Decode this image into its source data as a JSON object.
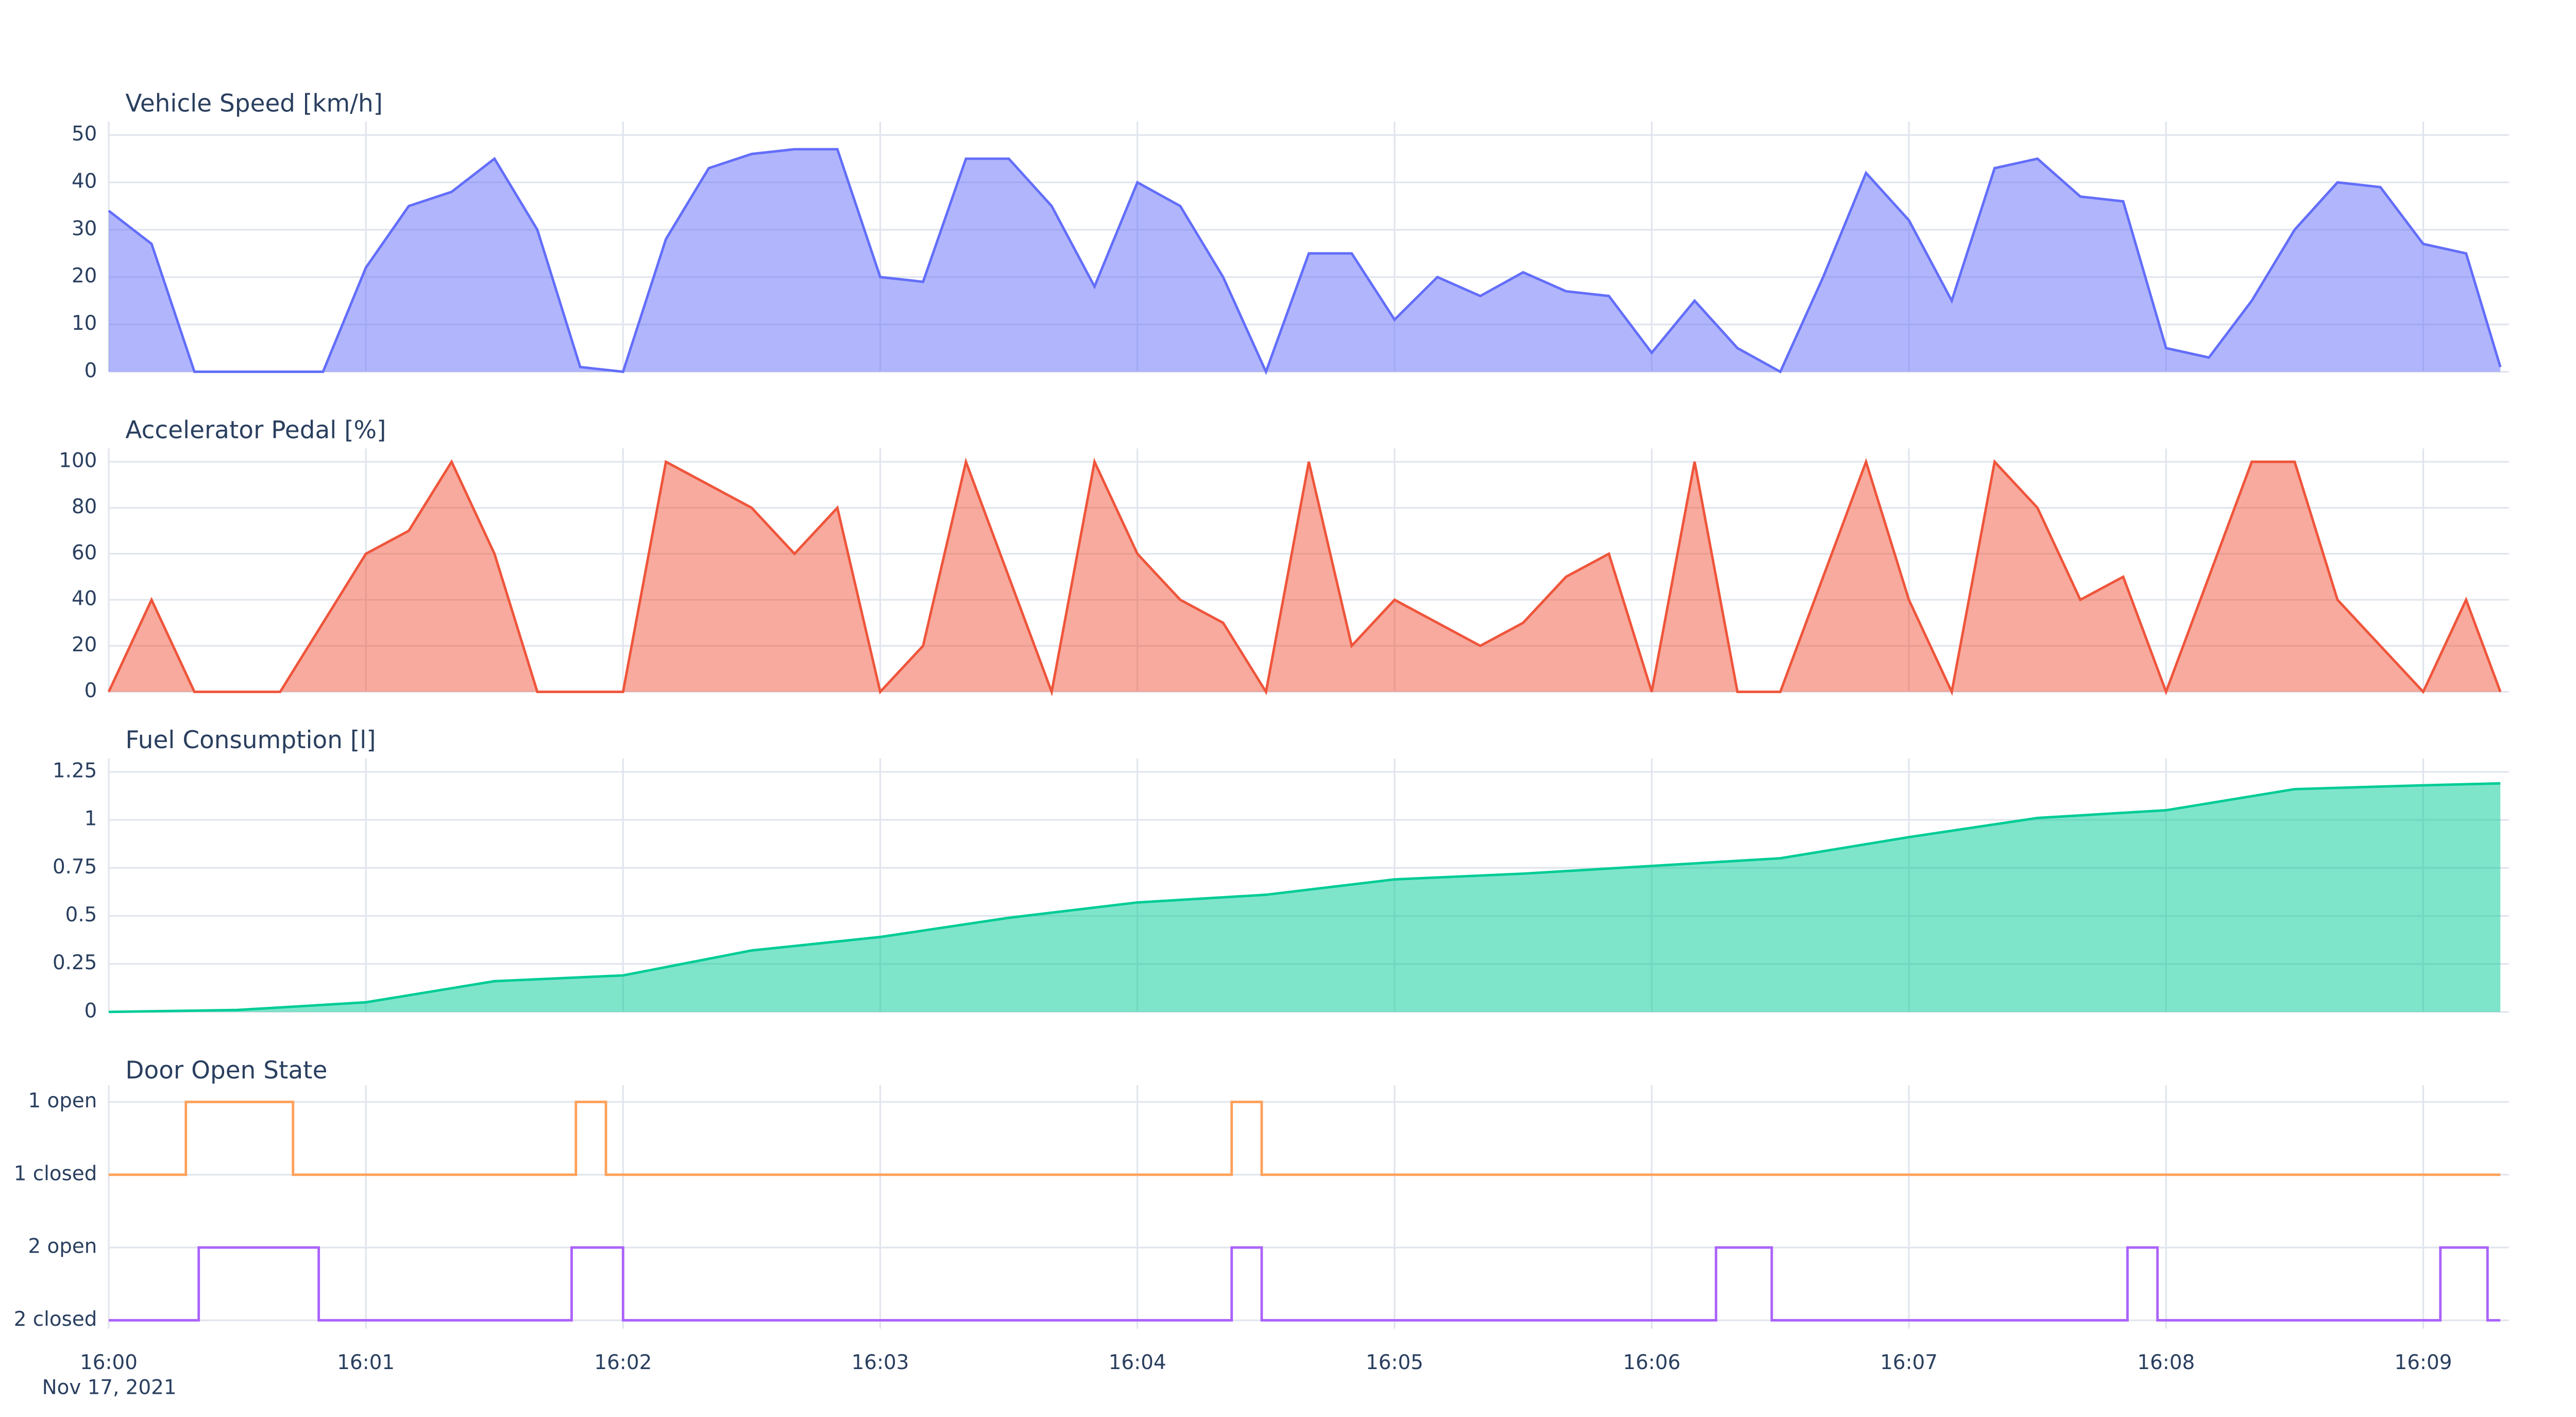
{
  "chart_data": [
    {
      "type": "area",
      "title": "Vehicle Speed [km/h]",
      "color": "#636efa",
      "grid": true,
      "xlim": [
        "16:00:00",
        "16:09:20"
      ],
      "ylim": [
        0,
        50
      ],
      "yticks": [
        0,
        10,
        20,
        30,
        40,
        50
      ],
      "x": [
        "16:00:00",
        "16:00:10",
        "16:00:20",
        "16:00:30",
        "16:00:40",
        "16:00:50",
        "16:01:00",
        "16:01:10",
        "16:01:20",
        "16:01:30",
        "16:01:40",
        "16:01:50",
        "16:02:00",
        "16:02:10",
        "16:02:20",
        "16:02:30",
        "16:02:40",
        "16:02:50",
        "16:03:00",
        "16:03:10",
        "16:03:20",
        "16:03:30",
        "16:03:40",
        "16:03:50",
        "16:04:00",
        "16:04:10",
        "16:04:20",
        "16:04:30",
        "16:04:40",
        "16:04:50",
        "16:05:00",
        "16:05:10",
        "16:05:20",
        "16:05:30",
        "16:05:40",
        "16:05:50",
        "16:06:00",
        "16:06:10",
        "16:06:20",
        "16:06:30",
        "16:06:40",
        "16:06:50",
        "16:07:00",
        "16:07:10",
        "16:07:20",
        "16:07:30",
        "16:07:40",
        "16:07:50",
        "16:08:00",
        "16:08:10",
        "16:08:20",
        "16:08:30",
        "16:08:40",
        "16:08:50",
        "16:09:00",
        "16:09:10",
        "16:09:18"
      ],
      "values": [
        34,
        27,
        0,
        0,
        0,
        0,
        22,
        35,
        38,
        45,
        30,
        1,
        0,
        28,
        43,
        46,
        47,
        47,
        20,
        19,
        45,
        45,
        35,
        18,
        40,
        35,
        20,
        0,
        25,
        25,
        11,
        20,
        16,
        21,
        17,
        16,
        4,
        15,
        5,
        0,
        20,
        42,
        32,
        15,
        43,
        45,
        37,
        36,
        5,
        3,
        15,
        30,
        40,
        39,
        27,
        25,
        1
      ]
    },
    {
      "type": "area",
      "title": "Accelerator Pedal [%]",
      "color": "#ef553b",
      "grid": true,
      "xlim": [
        "16:00:00",
        "16:09:20"
      ],
      "ylim": [
        0,
        100
      ],
      "yticks": [
        0,
        20,
        40,
        60,
        80,
        100
      ],
      "x": [
        "16:00:00",
        "16:00:10",
        "16:00:20",
        "16:00:30",
        "16:00:40",
        "16:00:50",
        "16:01:00",
        "16:01:10",
        "16:01:20",
        "16:01:30",
        "16:01:40",
        "16:01:50",
        "16:02:00",
        "16:02:10",
        "16:02:20",
        "16:02:30",
        "16:02:40",
        "16:02:50",
        "16:03:00",
        "16:03:10",
        "16:03:20",
        "16:03:30",
        "16:03:40",
        "16:03:50",
        "16:04:00",
        "16:04:10",
        "16:04:20",
        "16:04:30",
        "16:04:40",
        "16:04:50",
        "16:05:00",
        "16:05:10",
        "16:05:20",
        "16:05:30",
        "16:05:40",
        "16:05:50",
        "16:06:00",
        "16:06:10",
        "16:06:20",
        "16:06:30",
        "16:06:40",
        "16:06:50",
        "16:07:00",
        "16:07:10",
        "16:07:20",
        "16:07:30",
        "16:07:40",
        "16:07:50",
        "16:08:00",
        "16:08:10",
        "16:08:20",
        "16:08:30",
        "16:08:40",
        "16:08:50",
        "16:09:00",
        "16:09:10",
        "16:09:18"
      ],
      "values": [
        0,
        40,
        0,
        0,
        0,
        30,
        60,
        70,
        100,
        60,
        0,
        0,
        0,
        100,
        90,
        80,
        60,
        80,
        0,
        20,
        100,
        50,
        0,
        100,
        60,
        40,
        30,
        0,
        100,
        20,
        40,
        30,
        20,
        30,
        50,
        60,
        0,
        100,
        0,
        0,
        50,
        100,
        40,
        0,
        100,
        80,
        40,
        50,
        0,
        50,
        100,
        100,
        40,
        20,
        0,
        40,
        0
      ]
    },
    {
      "type": "area",
      "title": "Fuel Consumption [l]",
      "color": "#00cc96",
      "grid": true,
      "xlim": [
        "16:00:00",
        "16:09:20"
      ],
      "ylim": [
        0,
        1.25
      ],
      "yticks": [
        0,
        0.25,
        0.5,
        0.75,
        1,
        1.25
      ],
      "x": [
        "16:00:00",
        "16:00:30",
        "16:01:00",
        "16:01:30",
        "16:02:00",
        "16:02:30",
        "16:03:00",
        "16:03:30",
        "16:04:00",
        "16:04:30",
        "16:05:00",
        "16:05:30",
        "16:06:00",
        "16:06:30",
        "16:07:00",
        "16:07:30",
        "16:08:00",
        "16:08:30",
        "16:09:00",
        "16:09:18"
      ],
      "values": [
        0,
        0.01,
        0.05,
        0.16,
        0.19,
        0.32,
        0.39,
        0.49,
        0.57,
        0.61,
        0.69,
        0.72,
        0.76,
        0.8,
        0.91,
        1.01,
        1.05,
        1.16,
        1.18,
        1.19
      ]
    },
    {
      "type": "line",
      "title": "Door Open State",
      "line_shape": "hv",
      "grid": true,
      "xlim": [
        "16:00:00",
        "16:09:20"
      ],
      "xticks": [
        "16:00",
        "16:01",
        "16:02",
        "16:03",
        "16:04",
        "16:05",
        "16:06",
        "16:07",
        "16:08",
        "16:09"
      ],
      "x_date_label": "Nov 17, 2021",
      "y_categories": [
        "2 closed",
        "2 open",
        "1 closed",
        "1 open"
      ],
      "series": [
        {
          "color": "#ffa15a",
          "x": [
            "16:00:00",
            "16:00:18",
            "16:00:43",
            "16:01:49",
            "16:01:56",
            "16:04:22",
            "16:04:29",
            "16:09:18"
          ],
          "values": [
            "1 closed",
            "1 open",
            "1 closed",
            "1 open",
            "1 closed",
            "1 open",
            "1 closed",
            "1 closed"
          ]
        },
        {
          "color": "#ab63fa",
          "x": [
            "16:00:00",
            "16:00:21",
            "16:00:49",
            "16:01:48",
            "16:02:00",
            "16:04:22",
            "16:04:29",
            "16:06:15",
            "16:06:28",
            "16:07:51",
            "16:07:58",
            "16:09:04",
            "16:09:15",
            "16:09:18"
          ],
          "values": [
            "2 closed",
            "2 open",
            "2 closed",
            "2 open",
            "2 closed",
            "2 open",
            "2 closed",
            "2 open",
            "2 closed",
            "2 open",
            "2 closed",
            "2 open",
            "2 closed",
            "2 closed"
          ]
        }
      ]
    }
  ]
}
